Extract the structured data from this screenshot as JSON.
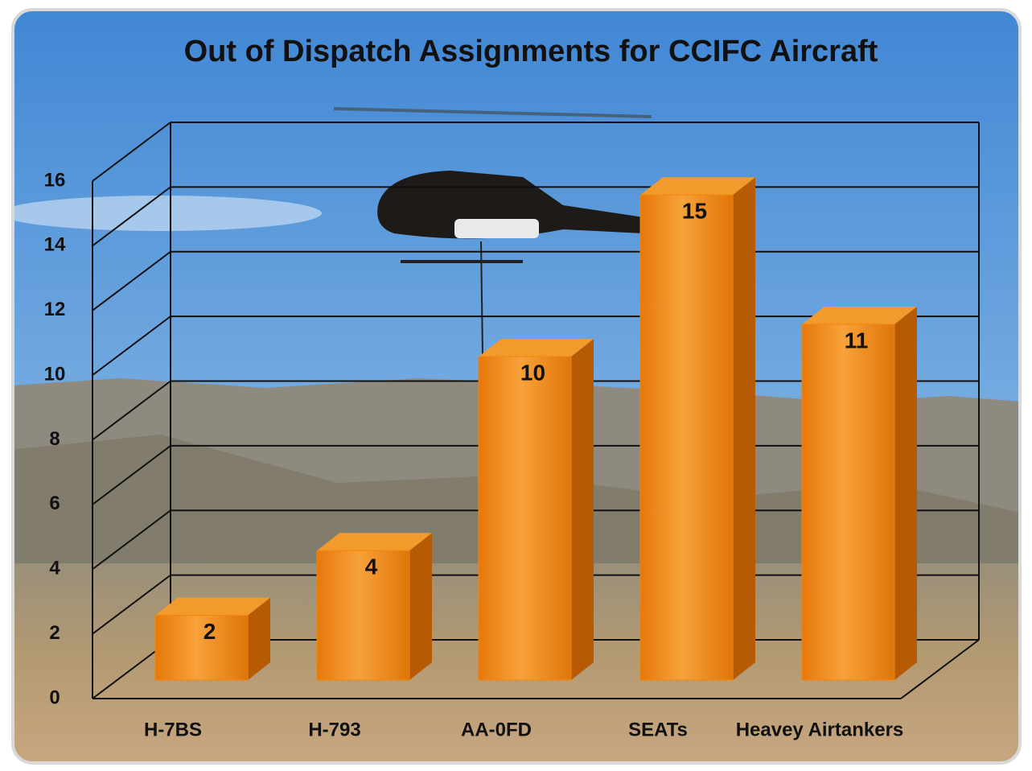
{
  "chart_data": {
    "type": "bar3d",
    "title": "Out of Dispatch Assignments for CCIFC Aircraft",
    "categories": [
      "H-7BS",
      "H-793",
      "AA-0FD",
      "SEATs",
      "Heavey Airtankers"
    ],
    "values": [
      2,
      4,
      10,
      15,
      11
    ],
    "color": "#f0860c",
    "ylim": [
      0,
      16
    ],
    "yticks": [
      0,
      2,
      4,
      6,
      8,
      10,
      12,
      14,
      16
    ],
    "grid": true
  }
}
